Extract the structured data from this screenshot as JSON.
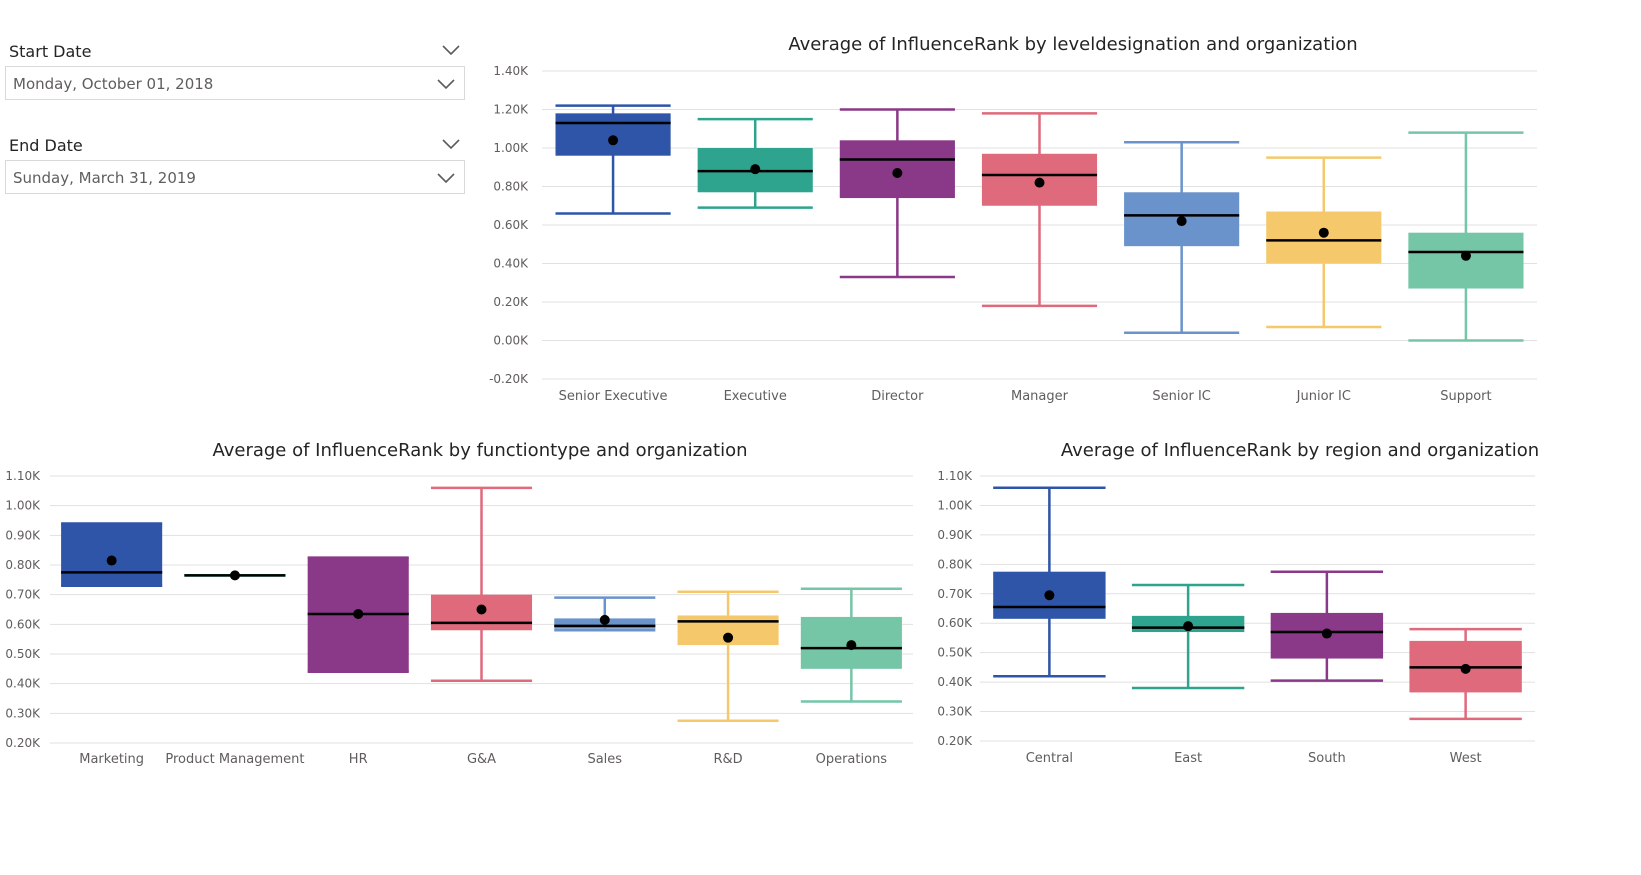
{
  "slicers": {
    "start": {
      "label": "Start Date",
      "value": "Monday, October 01, 2018"
    },
    "end": {
      "label": "End Date",
      "value": "Sunday, March 31, 2019"
    }
  },
  "chart_data": [
    {
      "type": "boxplot",
      "title": "Average of InfluenceRank by leveldesignation and organization",
      "xlabel": "",
      "ylabel": "",
      "ylim": [
        -0.2,
        1.4
      ],
      "yticks": [
        -0.2,
        0,
        0.2,
        0.4,
        0.6,
        0.8,
        1.0,
        1.2,
        1.4
      ],
      "ytick_labels": [
        "-0.20K",
        "0.00K",
        "0.20K",
        "0.40K",
        "0.60K",
        "0.80K",
        "1.00K",
        "1.20K",
        "1.40K"
      ],
      "grid": true,
      "categories": [
        "Senior Executive",
        "Executive",
        "Director",
        "Manager",
        "Senior IC",
        "Junior IC",
        "Support"
      ],
      "colors": [
        "#2e55a8",
        "#2ea48e",
        "#8a3888",
        "#df6a7c",
        "#6a93cc",
        "#f5c96b",
        "#75c5a7"
      ],
      "boxes": [
        {
          "min": 0.66,
          "q1": 0.96,
          "median": 1.13,
          "q3": 1.18,
          "max": 1.22,
          "mean": 1.04
        },
        {
          "min": 0.69,
          "q1": 0.77,
          "median": 0.88,
          "q3": 1.0,
          "max": 1.15,
          "mean": 0.89
        },
        {
          "min": 0.33,
          "q1": 0.74,
          "median": 0.94,
          "q3": 1.04,
          "max": 1.2,
          "mean": 0.87
        },
        {
          "min": 0.18,
          "q1": 0.7,
          "median": 0.86,
          "q3": 0.97,
          "max": 1.18,
          "mean": 0.82
        },
        {
          "min": 0.04,
          "q1": 0.49,
          "median": 0.65,
          "q3": 0.77,
          "max": 1.03,
          "mean": 0.62
        },
        {
          "min": 0.07,
          "q1": 0.4,
          "median": 0.52,
          "q3": 0.67,
          "max": 0.95,
          "mean": 0.56
        },
        {
          "min": 0.0,
          "q1": 0.27,
          "median": 0.46,
          "q3": 0.56,
          "max": 1.08,
          "mean": 0.44
        }
      ]
    },
    {
      "type": "boxplot",
      "title": "Average of InfluenceRank by functiontype and organization",
      "xlabel": "",
      "ylabel": "",
      "ylim": [
        0.2,
        1.1
      ],
      "yticks": [
        0.2,
        0.3,
        0.4,
        0.5,
        0.6,
        0.7,
        0.8,
        0.9,
        1.0,
        1.1
      ],
      "ytick_labels": [
        "0.20K",
        "0.30K",
        "0.40K",
        "0.50K",
        "0.60K",
        "0.70K",
        "0.80K",
        "0.90K",
        "1.00K",
        "1.10K"
      ],
      "grid": true,
      "categories": [
        "Marketing",
        "Product Management",
        "HR",
        "G&A",
        "Sales",
        "R&D",
        "Operations"
      ],
      "colors": [
        "#2e55a8",
        "#2ea48e",
        "#8a3888",
        "#df6a7c",
        "#6a93cc",
        "#f5c96b",
        "#75c5a7"
      ],
      "boxes": [
        {
          "min": 0.73,
          "q1": 0.73,
          "median": 0.775,
          "q3": 0.94,
          "max": 0.94,
          "mean": 0.815
        },
        {
          "min": 0.765,
          "q1": 0.765,
          "median": 0.765,
          "q3": 0.765,
          "max": 0.765,
          "mean": 0.765
        },
        {
          "min": 0.44,
          "q1": 0.44,
          "median": 0.635,
          "q3": 0.825,
          "max": 0.825,
          "mean": 0.635
        },
        {
          "min": 0.41,
          "q1": 0.58,
          "median": 0.605,
          "q3": 0.7,
          "max": 1.06,
          "mean": 0.65
        },
        {
          "min": 0.58,
          "q1": 0.585,
          "median": 0.595,
          "q3": 0.62,
          "max": 0.69,
          "mean": 0.615
        },
        {
          "min": 0.275,
          "q1": 0.53,
          "median": 0.61,
          "q3": 0.63,
          "max": 0.71,
          "mean": 0.555
        },
        {
          "min": 0.34,
          "q1": 0.45,
          "median": 0.52,
          "q3": 0.625,
          "max": 0.72,
          "mean": 0.53
        }
      ]
    },
    {
      "type": "boxplot",
      "title": "Average of InfluenceRank by region and organization",
      "xlabel": "",
      "ylabel": "",
      "ylim": [
        0.2,
        1.1
      ],
      "yticks": [
        0.2,
        0.3,
        0.4,
        0.5,
        0.6,
        0.7,
        0.8,
        0.9,
        1.0,
        1.1
      ],
      "ytick_labels": [
        "0.20K",
        "0.30K",
        "0.40K",
        "0.50K",
        "0.60K",
        "0.70K",
        "0.80K",
        "0.90K",
        "1.00K",
        "1.10K"
      ],
      "grid": true,
      "categories": [
        "Central",
        "East",
        "South",
        "West"
      ],
      "colors": [
        "#2e55a8",
        "#2ea48e",
        "#8a3888",
        "#df6a7c"
      ],
      "boxes": [
        {
          "min": 0.42,
          "q1": 0.615,
          "median": 0.655,
          "q3": 0.775,
          "max": 1.06,
          "mean": 0.695
        },
        {
          "min": 0.38,
          "q1": 0.57,
          "median": 0.585,
          "q3": 0.625,
          "max": 0.73,
          "mean": 0.59
        },
        {
          "min": 0.405,
          "q1": 0.48,
          "median": 0.57,
          "q3": 0.635,
          "max": 0.775,
          "mean": 0.565
        },
        {
          "min": 0.275,
          "q1": 0.365,
          "median": 0.45,
          "q3": 0.54,
          "max": 0.58,
          "mean": 0.445
        }
      ]
    }
  ]
}
